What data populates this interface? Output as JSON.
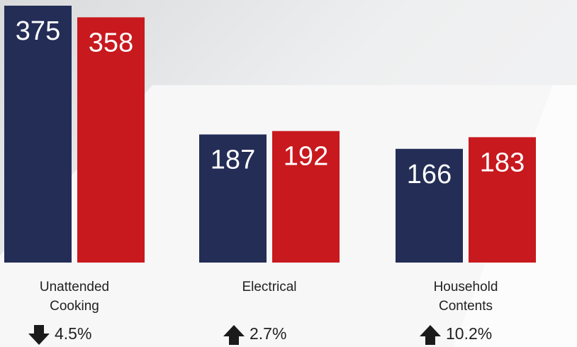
{
  "chart_data": {
    "type": "bar",
    "categories": [
      "Unattended Cooking",
      "Electrical",
      "Household Contents"
    ],
    "series": [
      {
        "color": "#232d56",
        "values": [
          375,
          187,
          166
        ]
      },
      {
        "color": "#c8191e",
        "values": [
          358,
          192,
          183
        ]
      }
    ],
    "changes": [
      {
        "label": "4.5%",
        "direction": "down"
      },
      {
        "label": "2.7%",
        "direction": "up"
      },
      {
        "label": "10.2%",
        "direction": "up"
      }
    ]
  }
}
